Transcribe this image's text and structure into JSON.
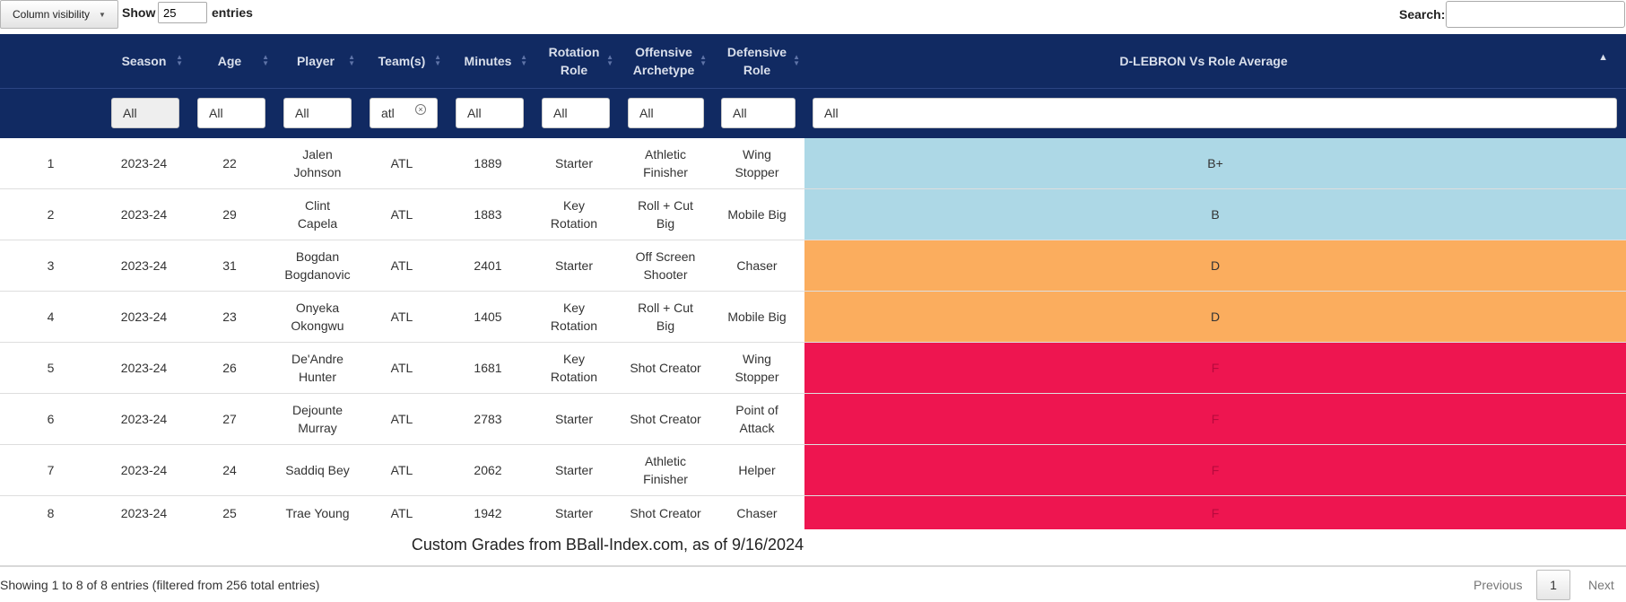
{
  "toolbar": {
    "column_visibility_label": "Column visibility",
    "show_label": "Show",
    "page_length": "25",
    "entries_label": "entries",
    "search_label": "Search:",
    "search_value": ""
  },
  "headers": {
    "season": "Season",
    "age": "Age",
    "player": "Player",
    "teams": "Team(s)",
    "minutes": "Minutes",
    "rotation_role": "Rotation Role",
    "offensive_archetype": "Offensive Archetype",
    "defensive_role": "Defensive Role",
    "dlebron": "D-LEBRON Vs Role Average"
  },
  "filters": {
    "season": "All",
    "age": "All",
    "player": "All",
    "teams": "atl",
    "minutes": "All",
    "rotation_role": "All",
    "offensive_archetype": "All",
    "defensive_role": "All",
    "dlebron": "All"
  },
  "rows": [
    {
      "num": "1",
      "season": "2023-24",
      "age": "22",
      "player": "Jalen Johnson",
      "team": "ATL",
      "minutes": "1889",
      "rotation_role": "Starter",
      "offensive_archetype": "Athletic Finisher",
      "defensive_role": "Wing Stopper",
      "grade": "B+",
      "grade_color": "#add8e6"
    },
    {
      "num": "2",
      "season": "2023-24",
      "age": "29",
      "player": "Clint Capela",
      "team": "ATL",
      "minutes": "1883",
      "rotation_role": "Key Rotation",
      "offensive_archetype": "Roll + Cut Big",
      "defensive_role": "Mobile Big",
      "grade": "B",
      "grade_color": "#add8e6"
    },
    {
      "num": "3",
      "season": "2023-24",
      "age": "31",
      "player": "Bogdan Bogdanovic",
      "team": "ATL",
      "minutes": "2401",
      "rotation_role": "Starter",
      "offensive_archetype": "Off Screen Shooter",
      "defensive_role": "Chaser",
      "grade": "D",
      "grade_color": "#fbad5e"
    },
    {
      "num": "4",
      "season": "2023-24",
      "age": "23",
      "player": "Onyeka Okongwu",
      "team": "ATL",
      "minutes": "1405",
      "rotation_role": "Key Rotation",
      "offensive_archetype": "Roll + Cut Big",
      "defensive_role": "Mobile Big",
      "grade": "D",
      "grade_color": "#fbad5e"
    },
    {
      "num": "5",
      "season": "2023-24",
      "age": "26",
      "player": "De'Andre Hunter",
      "team": "ATL",
      "minutes": "1681",
      "rotation_role": "Key Rotation",
      "offensive_archetype": "Shot Creator",
      "defensive_role": "Wing Stopper",
      "grade": "F",
      "grade_color": "#ee1550"
    },
    {
      "num": "6",
      "season": "2023-24",
      "age": "27",
      "player": "Dejounte Murray",
      "team": "ATL",
      "minutes": "2783",
      "rotation_role": "Starter",
      "offensive_archetype": "Shot Creator",
      "defensive_role": "Point of Attack",
      "grade": "F",
      "grade_color": "#ee1550"
    },
    {
      "num": "7",
      "season": "2023-24",
      "age": "24",
      "player": "Saddiq Bey",
      "team": "ATL",
      "minutes": "2062",
      "rotation_role": "Starter",
      "offensive_archetype": "Athletic Finisher",
      "defensive_role": "Helper",
      "grade": "F",
      "grade_color": "#ee1550"
    },
    {
      "num": "8",
      "season": "2023-24",
      "age": "25",
      "player": "Trae Young",
      "team": "ATL",
      "minutes": "1942",
      "rotation_role": "Starter",
      "offensive_archetype": "Shot Creator",
      "defensive_role": "Chaser",
      "grade": "F",
      "grade_color": "#ee1550"
    }
  ],
  "caption": "Custom Grades from BBall-Index.com, as of 9/16/2024",
  "info": "Showing 1 to 8 of 8 entries (filtered from 256 total entries)",
  "pagination": {
    "previous": "Previous",
    "current": "1",
    "next": "Next"
  },
  "colors": {
    "header_bg": "#112a62",
    "grade_good": "#add8e6",
    "grade_mid": "#fbad5e",
    "grade_bad": "#ee1550"
  }
}
